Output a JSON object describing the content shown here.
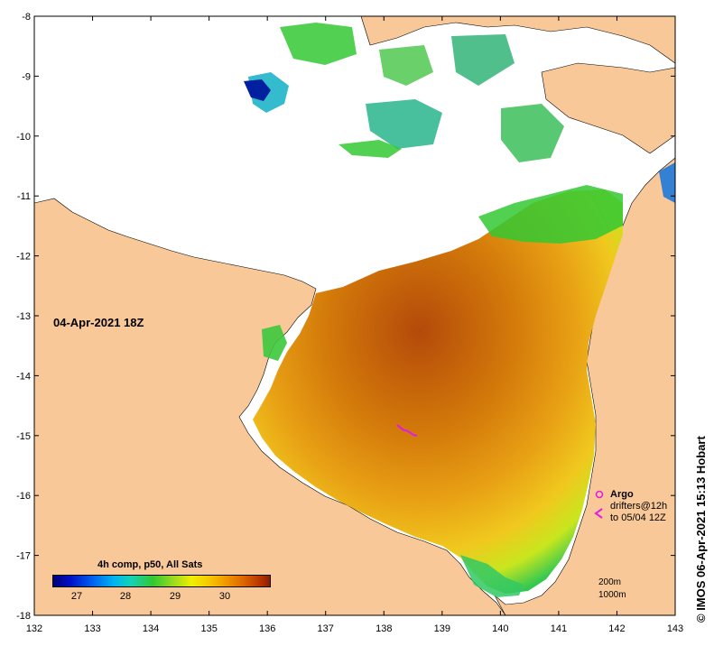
{
  "map": {
    "title_date": "04-Apr-2021 18Z",
    "longitude_ticks": [
      "132",
      "133",
      "134",
      "135",
      "136",
      "137",
      "138",
      "139",
      "140",
      "141",
      "142",
      "143"
    ],
    "latitude_ticks": [
      "-8",
      "-9",
      "-10",
      "-11",
      "-12",
      "-13",
      "-14",
      "-15",
      "-16",
      "-17",
      "-18"
    ],
    "colors": {
      "land": "#f8c898",
      "no_data": "#ffffff",
      "coastline": "#000000"
    }
  },
  "colorbar": {
    "title": "4h comp, p50, All Sats",
    "ticks": [
      "27",
      "28",
      "29",
      "30"
    ]
  },
  "legend": {
    "argo_label": "Argo",
    "drifters_line1": "drifters@12h",
    "drifters_line2": "to 05/04 12Z",
    "argo_color": "#e020e0"
  },
  "depth_contours": {
    "shallow": "200m",
    "deep": "1000m"
  },
  "credit": "© IMOS 06-Apr-2021 15:13 Hobart"
}
